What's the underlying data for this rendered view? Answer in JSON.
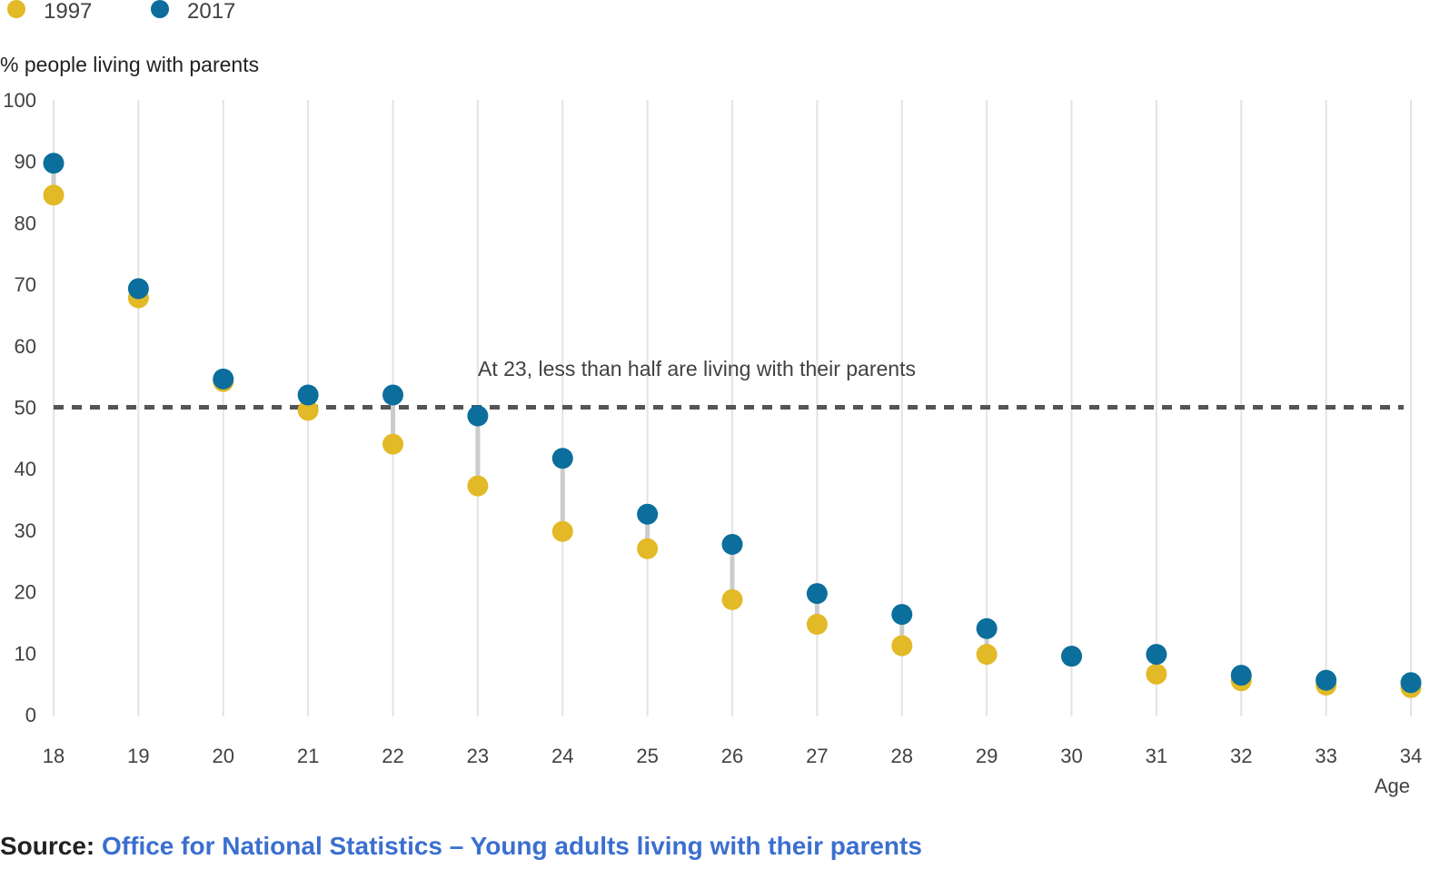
{
  "colors": {
    "s1997": "#e2b926",
    "s2017": "#0b6e9c",
    "connector": "#cccccc",
    "grid": "#e3e3e3",
    "reference": "#555555"
  },
  "legend": [
    {
      "label": "1997",
      "color": "#e2b926"
    },
    {
      "label": "2017",
      "color": "#0b6e9c"
    }
  ],
  "source": {
    "label": "Source:",
    "link_text": "Office for National Statistics – Young adults living with their parents"
  },
  "chart_data": {
    "type": "scatter",
    "title": "",
    "ylabel": "% people living with parents",
    "xlabel": "Age",
    "ylim": [
      0,
      100
    ],
    "yticks": [
      0,
      10,
      20,
      30,
      40,
      50,
      60,
      70,
      80,
      90,
      100
    ],
    "x": [
      18,
      19,
      20,
      21,
      22,
      23,
      24,
      25,
      26,
      27,
      28,
      29,
      30,
      31,
      32,
      33,
      34
    ],
    "series": [
      {
        "name": "1997",
        "values": [
          84.5,
          67.8,
          54.2,
          49.5,
          44.0,
          37.2,
          29.8,
          27.0,
          18.7,
          14.7,
          11.2,
          9.8,
          9.5,
          6.6,
          5.5,
          4.8,
          4.4
        ]
      },
      {
        "name": "2017",
        "values": [
          89.7,
          69.3,
          54.6,
          52.0,
          52.0,
          48.6,
          41.7,
          32.6,
          27.7,
          19.7,
          16.3,
          14.0,
          9.5,
          9.8,
          6.4,
          5.6,
          5.2
        ]
      }
    ],
    "reference_line": {
      "y": 50,
      "style": "dashed"
    },
    "annotation": {
      "text": "At 23, less than half are living with their parents"
    },
    "grid": "vertical",
    "legend_position": "top-left"
  }
}
